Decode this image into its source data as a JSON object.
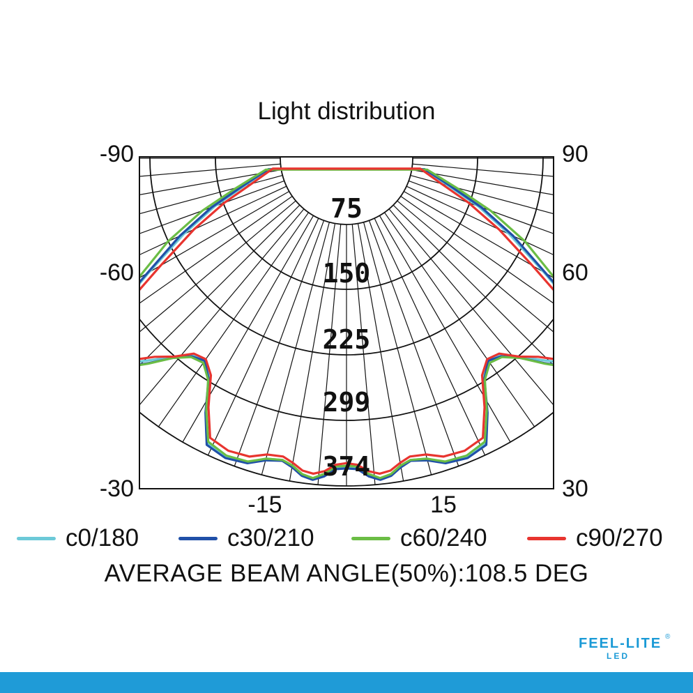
{
  "chart_data": {
    "type": "polar-candela",
    "title": "Light distribution",
    "angle_labels": {
      "left": [
        "-90",
        "-60",
        "-30"
      ],
      "right": [
        "90",
        "60",
        "30"
      ],
      "bottom": [
        "-15",
        "15"
      ]
    },
    "radial_ticks": [
      75,
      150,
      225,
      299,
      374
    ],
    "rmax": 374,
    "series": [
      {
        "name": "c0/180",
        "color": "#6cc9d8",
        "angles": [
          -82,
          -75,
          -70,
          -65,
          -60,
          -57,
          -54,
          -51,
          -48,
          -46,
          -44,
          -41,
          -38,
          -35,
          -32,
          -29,
          -26,
          -22,
          -18,
          -15,
          -12,
          -10,
          -8,
          -6,
          -4,
          -2,
          0,
          2,
          4,
          6,
          8,
          10,
          12,
          15,
          18,
          22,
          26,
          29,
          32,
          35,
          38,
          41,
          44,
          46,
          48,
          51,
          54,
          57,
          60,
          65,
          70,
          75,
          82
        ],
        "values": [
          90,
          120,
          160,
          205,
          260,
          305,
          345,
          355,
          350,
          335,
          320,
          300,
          285,
          280,
          295,
          330,
          362,
          368,
          365,
          355,
          352,
          357,
          365,
          368,
          362,
          353,
          352,
          353,
          362,
          368,
          365,
          357,
          352,
          355,
          365,
          368,
          362,
          330,
          295,
          280,
          285,
          300,
          320,
          335,
          350,
          355,
          345,
          305,
          260,
          205,
          160,
          120,
          90
        ]
      },
      {
        "name": "c30/210",
        "color": "#2050a8",
        "angles": [
          -82,
          -75,
          -70,
          -65,
          -60,
          -57,
          -54,
          -51,
          -48,
          -46,
          -44,
          -41,
          -38,
          -35,
          -32,
          -29,
          -26,
          -22,
          -18,
          -15,
          -12,
          -10,
          -8,
          -6,
          -4,
          -2,
          0,
          2,
          4,
          6,
          8,
          10,
          12,
          15,
          18,
          22,
          26,
          29,
          32,
          35,
          38,
          41,
          44,
          46,
          48,
          51,
          54,
          57,
          60,
          65,
          70,
          75,
          82
        ],
        "values": [
          90,
          123,
          164,
          210,
          263,
          310,
          350,
          362,
          356,
          341,
          325,
          302,
          287,
          282,
          297,
          332,
          364,
          369,
          366,
          357,
          353,
          358,
          366,
          369,
          364,
          355,
          354,
          355,
          364,
          369,
          366,
          358,
          353,
          357,
          366,
          369,
          364,
          332,
          297,
          282,
          287,
          302,
          325,
          341,
          356,
          362,
          350,
          310,
          263,
          210,
          164,
          123,
          90
        ]
      },
      {
        "name": "c60/240",
        "color": "#6bbd45",
        "angles": [
          -82,
          -75,
          -70,
          -65,
          -60,
          -57,
          -54,
          -51,
          -48,
          -46,
          -44,
          -41,
          -38,
          -35,
          -32,
          -29,
          -26,
          -22,
          -18,
          -15,
          -12,
          -10,
          -8,
          -6,
          -4,
          -2,
          0,
          2,
          4,
          6,
          8,
          10,
          12,
          15,
          18,
          22,
          26,
          29,
          32,
          35,
          38,
          41,
          44,
          46,
          48,
          51,
          54,
          57,
          60,
          65,
          70,
          75,
          82
        ],
        "values": [
          93,
          130,
          175,
          225,
          275,
          318,
          355,
          364,
          358,
          342,
          326,
          302,
          288,
          285,
          298,
          330,
          360,
          366,
          364,
          355,
          352,
          356,
          364,
          367,
          361,
          352,
          351,
          352,
          361,
          367,
          364,
          356,
          352,
          355,
          364,
          366,
          360,
          330,
          298,
          285,
          288,
          302,
          326,
          342,
          358,
          364,
          355,
          318,
          275,
          225,
          175,
          130,
          93
        ]
      },
      {
        "name": "c90/270",
        "color": "#e8342f",
        "angles": [
          -82,
          -75,
          -70,
          -65,
          -60,
          -57,
          -54,
          -51,
          -48,
          -46,
          -44,
          -41,
          -38,
          -35,
          -32,
          -29,
          -26,
          -22,
          -18,
          -15,
          -12,
          -10,
          -8,
          -6,
          -4,
          -2,
          0,
          2,
          4,
          6,
          8,
          10,
          12,
          15,
          18,
          22,
          26,
          29,
          32,
          35,
          38,
          41,
          44,
          46,
          48,
          51,
          54,
          57,
          60,
          65,
          70,
          75,
          82
        ],
        "values": [
          85,
          112,
          148,
          192,
          245,
          290,
          330,
          345,
          345,
          330,
          315,
          300,
          283,
          280,
          292,
          325,
          355,
          360,
          358,
          350,
          348,
          353,
          360,
          362,
          358,
          350,
          348,
          350,
          358,
          362,
          360,
          353,
          348,
          350,
          358,
          360,
          355,
          325,
          292,
          280,
          283,
          300,
          315,
          330,
          345,
          345,
          330,
          290,
          245,
          192,
          148,
          112,
          85
        ]
      }
    ]
  },
  "legend": [
    {
      "label": "c0/180",
      "color": "#6cc9d8"
    },
    {
      "label": "c30/210",
      "color": "#2050a8"
    },
    {
      "label": "c60/240",
      "color": "#6bbd45"
    },
    {
      "label": "c90/270",
      "color": "#e8342f"
    }
  ],
  "beam_note": "AVERAGE BEAM ANGLE(50%):108.5  DEG",
  "logo": {
    "text": "FEEL-LITE",
    "sub": "LED",
    "reg": "®",
    "color": "#1a9ad6"
  },
  "bottom_bar_color": "#1f9bd7"
}
